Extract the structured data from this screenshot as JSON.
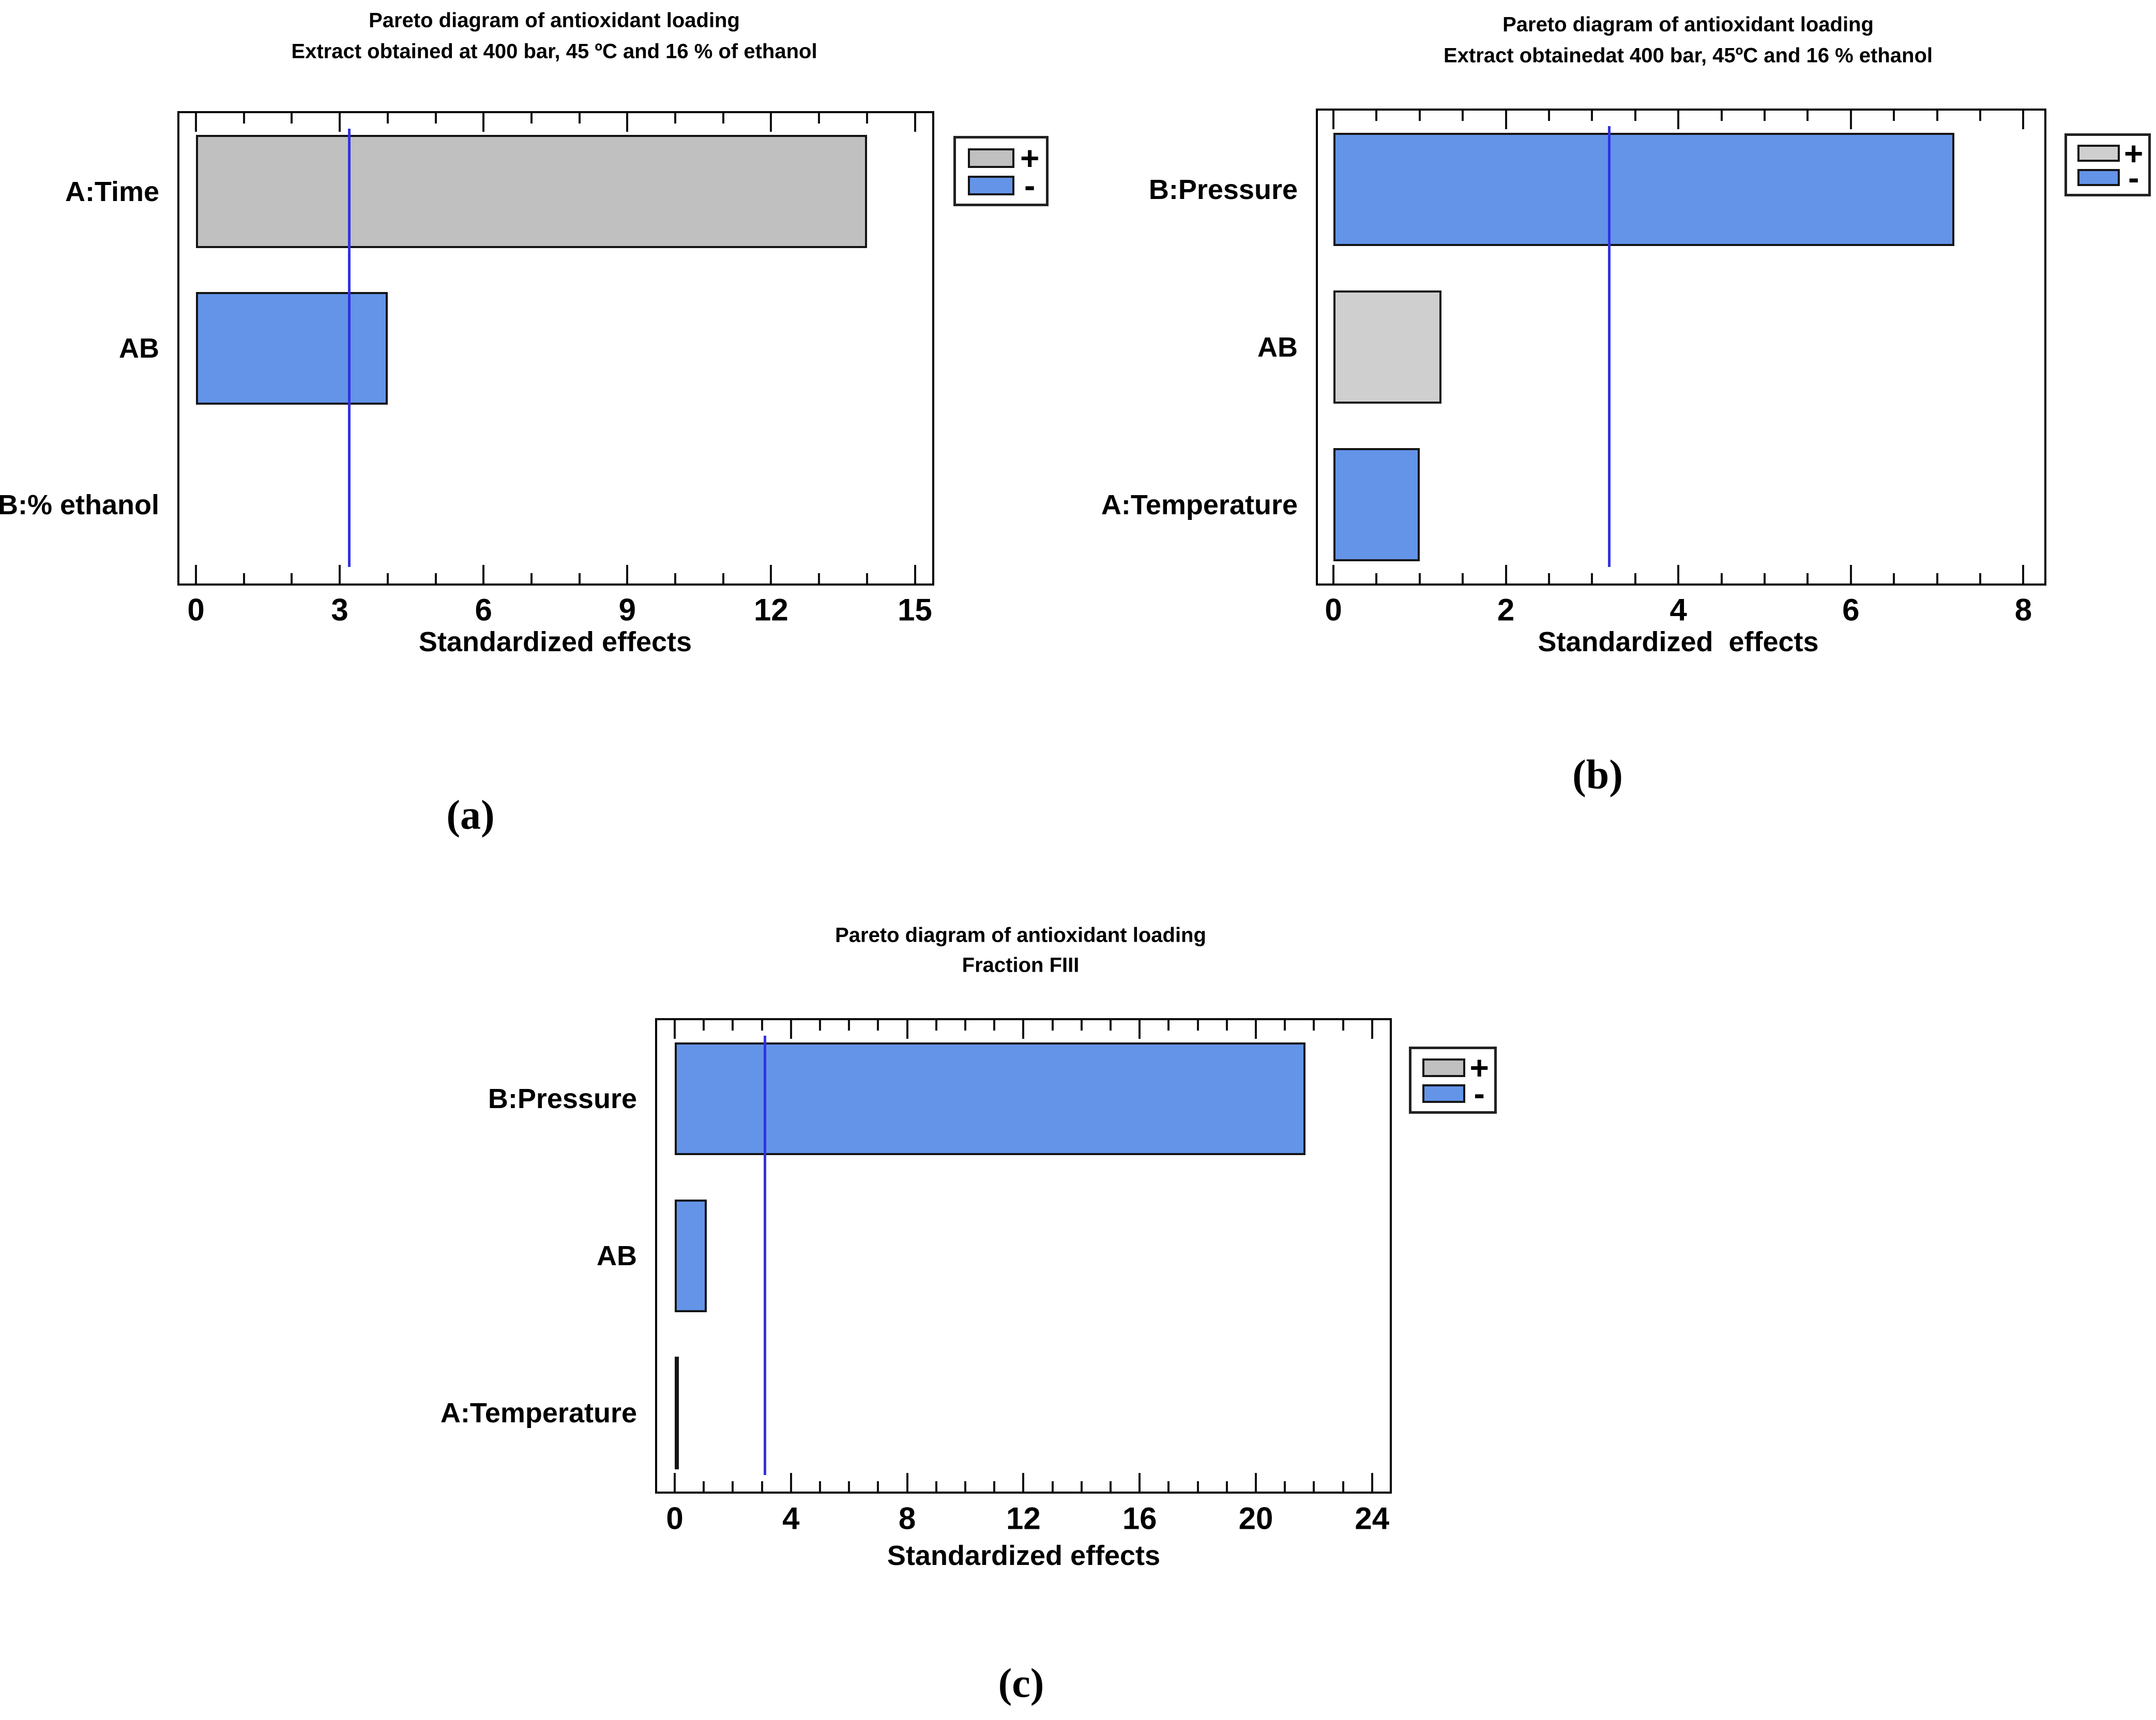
{
  "colors": {
    "plus_fill": "#C0C0C0",
    "minus_fill": "#6394E8",
    "bar_border": "#141414",
    "reference_line": "#3232E0",
    "plot_border": "#000000",
    "text": "#000000",
    "stipple_base": "#CFCFCF",
    "stipple_dot": "#A8A8A8"
  },
  "chart_data": [
    {
      "type": "bar",
      "orientation": "horizontal",
      "sublabel": "(a)",
      "title": "Pareto diagram of antioxidant loading",
      "subtitle": "Extract obtained at 400 bar, 45 ºC and 16 % of ethanol",
      "xlabel": "Standardized effects",
      "categories": [
        "A:Time",
        "AB",
        "B:% ethanol"
      ],
      "bars": [
        {
          "label": "A:Time",
          "value": 14.0,
          "sign": "+"
        },
        {
          "label": "AB",
          "value": 4.0,
          "sign": "-"
        },
        {
          "label": "B:% ethanol",
          "value": 0.0,
          "sign": "-"
        }
      ],
      "reference_line": 3.2,
      "xlim": [
        0,
        15
      ],
      "xticks": [
        0,
        3,
        6,
        9,
        12,
        15
      ],
      "minor_tick_step": 1,
      "plus_texture": "solid",
      "legend": {
        "plus": "+",
        "minus": "-"
      },
      "grid": false,
      "legend_position": "outside-top-right"
    },
    {
      "type": "bar",
      "orientation": "horizontal",
      "sublabel": "(b)",
      "title": "Pareto diagram of antioxidant loading",
      "subtitle": "Extract obtainedat 400 bar, 45ºC and 16 % ethanol",
      "xlabel": "Standardized  effects",
      "categories": [
        "B:Pressure",
        "AB",
        "A:Temperature"
      ],
      "bars": [
        {
          "label": "B:Pressure",
          "value": 7.2,
          "sign": "-"
        },
        {
          "label": "AB",
          "value": 1.25,
          "sign": "+"
        },
        {
          "label": "A:Temperature",
          "value": 1.0,
          "sign": "-"
        }
      ],
      "reference_line": 3.2,
      "xlim": [
        0,
        8
      ],
      "xticks": [
        0,
        2,
        4,
        6,
        8
      ],
      "minor_tick_step": 0.5,
      "plus_texture": "stipple",
      "legend": {
        "plus": "+",
        "minus": "-"
      },
      "grid": false,
      "legend_position": "outside-top-right"
    },
    {
      "type": "bar",
      "orientation": "horizontal",
      "sublabel": "(c)",
      "title": "Pareto diagram of antioxidant loading",
      "subtitle": "Fraction FIII",
      "xlabel": "Standardized effects",
      "categories": [
        "B:Pressure",
        "AB",
        "A:Temperature"
      ],
      "bars": [
        {
          "label": "B:Pressure",
          "value": 21.7,
          "sign": "-"
        },
        {
          "label": "AB",
          "value": 1.1,
          "sign": "-"
        },
        {
          "label": "A:Temperature",
          "value": 0.15,
          "sign": "-"
        }
      ],
      "reference_line": 3.1,
      "xlim": [
        0,
        24
      ],
      "xticks": [
        0,
        4,
        8,
        12,
        16,
        20,
        24
      ],
      "minor_tick_step": 1,
      "plus_texture": "solid",
      "legend": {
        "plus": "+",
        "minus": "-"
      },
      "grid": false,
      "legend_position": "outside-top-right"
    }
  ]
}
